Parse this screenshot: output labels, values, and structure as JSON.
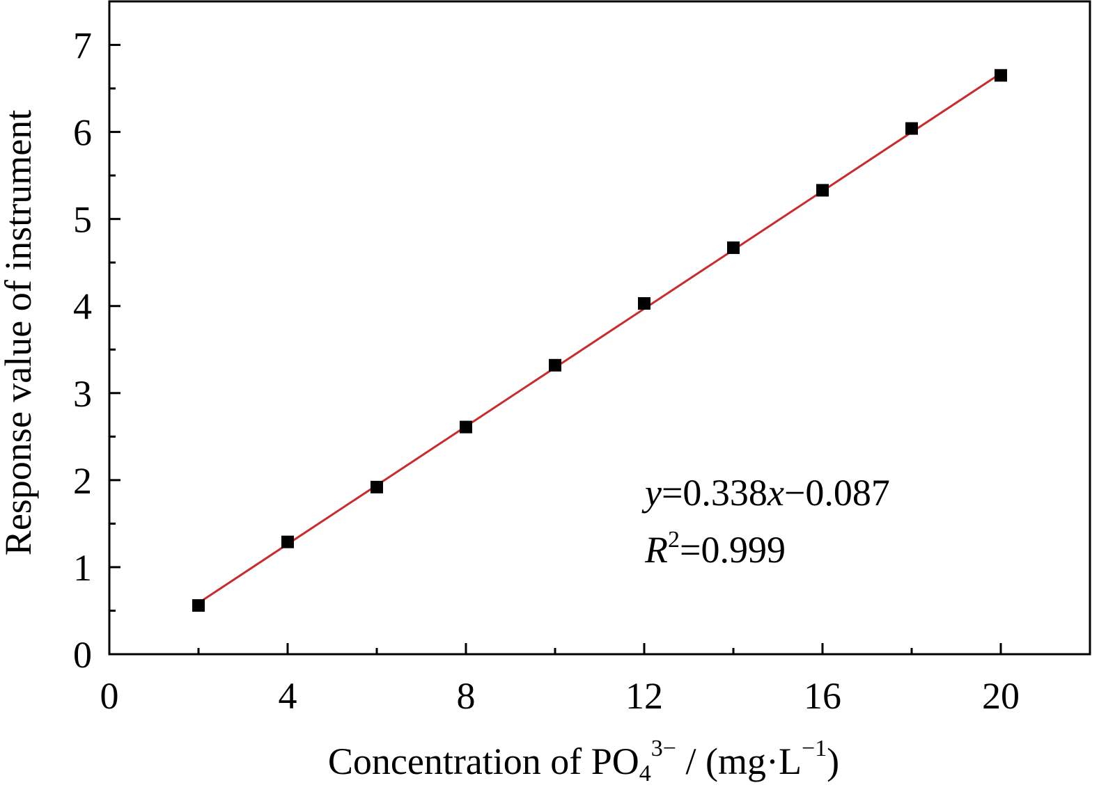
{
  "chart_data": {
    "type": "scatter",
    "title": "",
    "xlabel": {
      "main": "Concentration of PO",
      "sub": "4",
      "sup": "3−",
      "unit_pre": " / (mg·L",
      "unit_sup": "−1",
      "unit_post": ")"
    },
    "ylabel": "Response value of instrument",
    "xlim": [
      0,
      22
    ],
    "ylim": [
      0,
      7.5
    ],
    "x_ticks": [
      0,
      4,
      8,
      12,
      16,
      20
    ],
    "x_minor_ticks": [
      2,
      6,
      10,
      14,
      18
    ],
    "y_ticks": [
      0,
      1,
      2,
      3,
      4,
      5,
      6,
      7
    ],
    "grid": false,
    "series": [
      {
        "marker": "square",
        "color": "#000000",
        "points": [
          {
            "x": 2,
            "y": 0.56
          },
          {
            "x": 4,
            "y": 1.29
          },
          {
            "x": 6,
            "y": 1.92
          },
          {
            "x": 8,
            "y": 2.61
          },
          {
            "x": 10,
            "y": 3.32
          },
          {
            "x": 12,
            "y": 4.03
          },
          {
            "x": 14,
            "y": 4.67
          },
          {
            "x": 16,
            "y": 5.33
          },
          {
            "x": 18,
            "y": 6.04
          },
          {
            "x": 20,
            "y": 6.65
          }
        ]
      }
    ],
    "fit": {
      "slope": 0.338,
      "intercept": -0.087,
      "x_range": [
        2,
        20
      ],
      "color": "#cc2a2a"
    },
    "annotation": {
      "eq_y": "y",
      "eq_mid": "=0.338",
      "eq_x": "x",
      "eq_end": "−0.087",
      "r_label": "R",
      "r_sup": "2",
      "r_value": "=0.999"
    }
  }
}
